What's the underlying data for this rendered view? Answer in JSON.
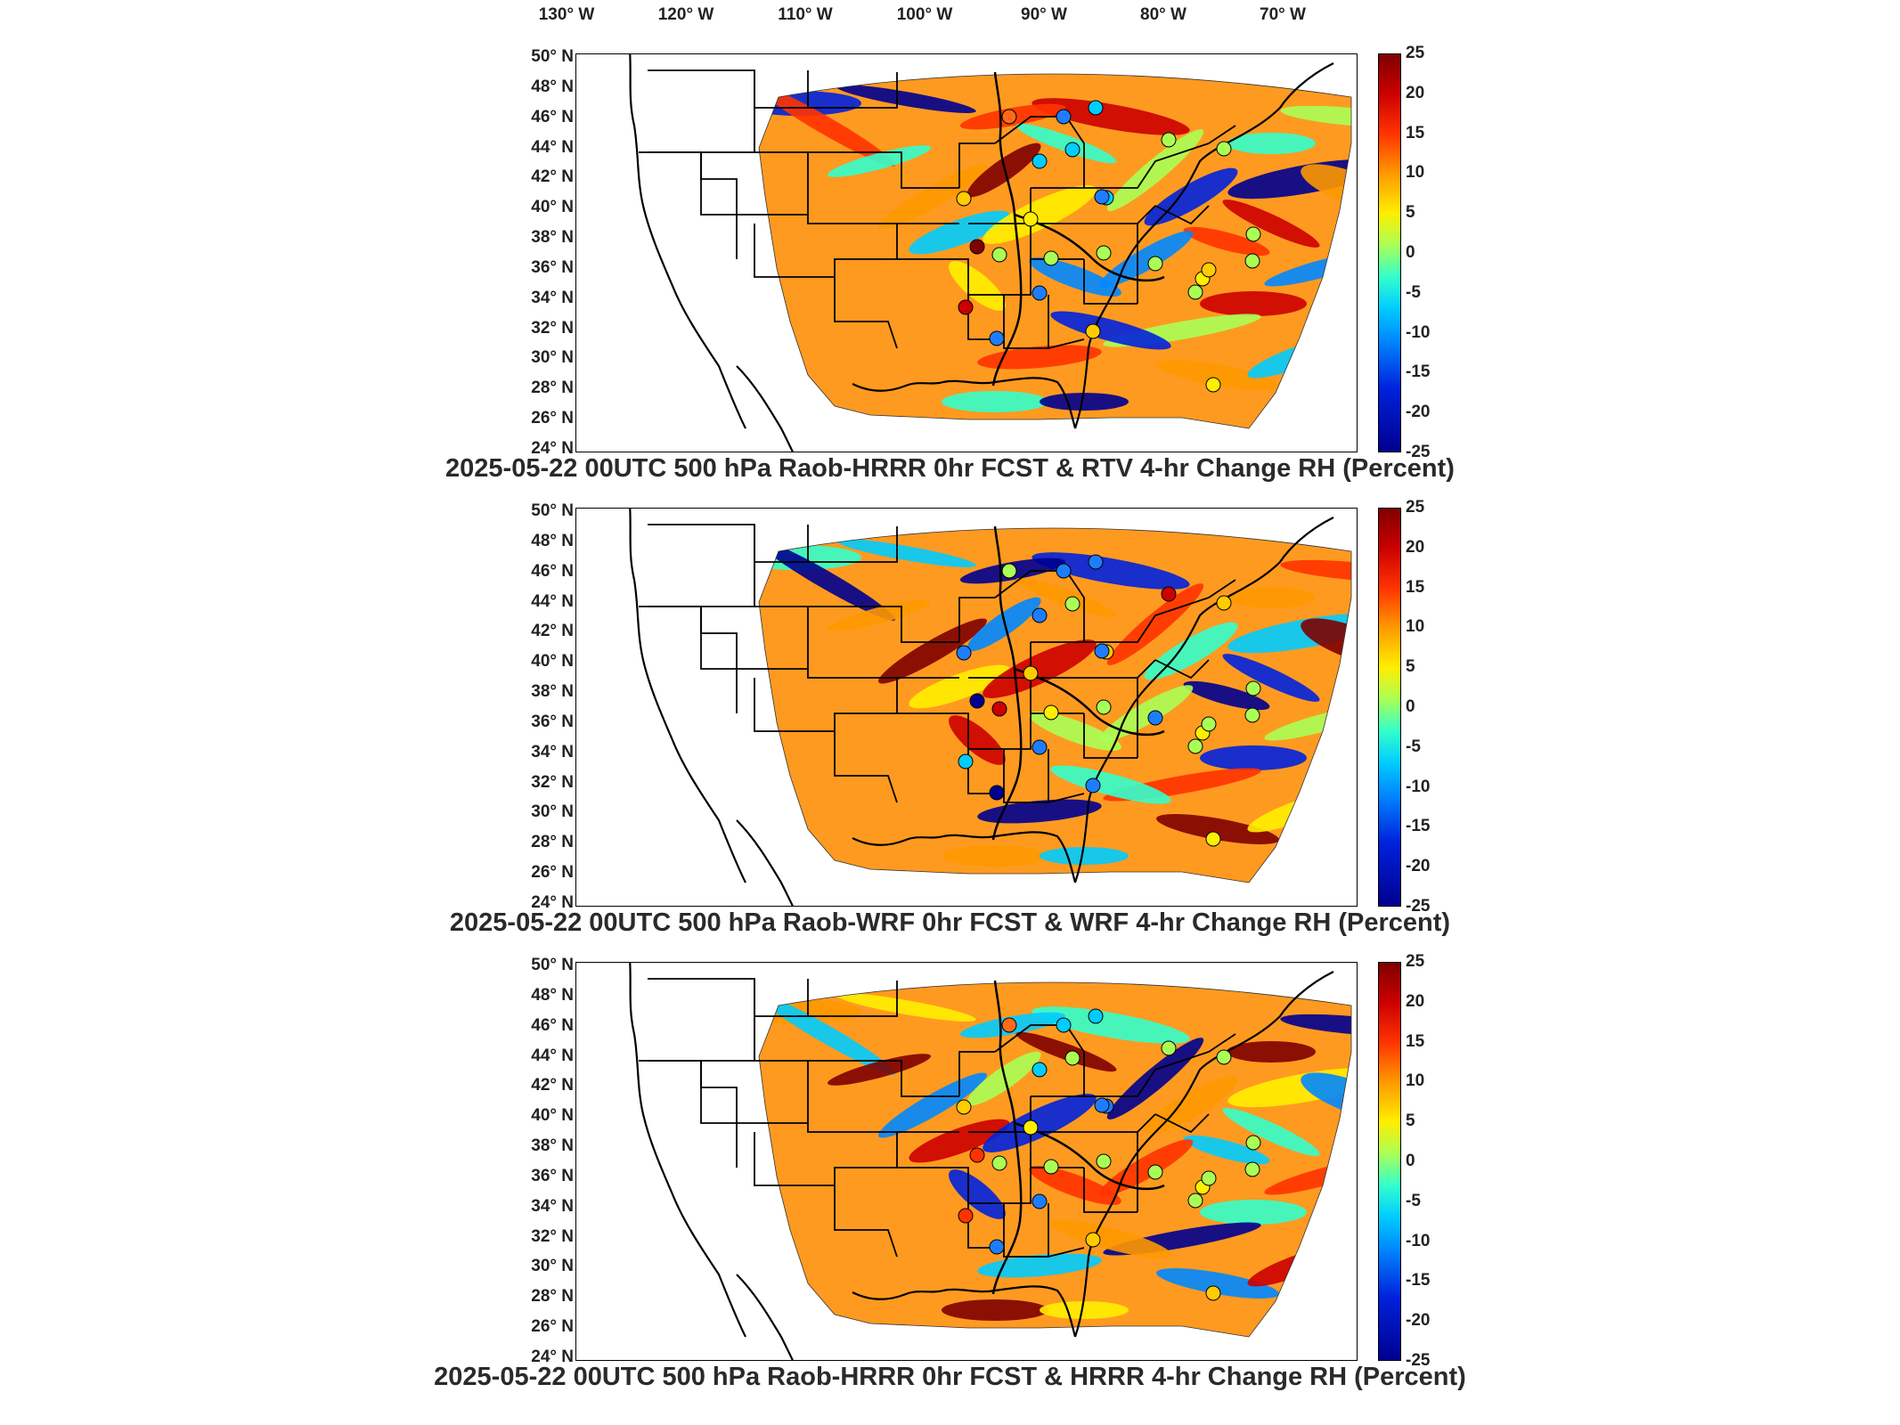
{
  "longitude_labels": [
    "130° W",
    "120° W",
    "110° W",
    "100° W",
    "90° W",
    "80° W",
    "70° W"
  ],
  "latitude_labels": [
    "50° N",
    "48° N",
    "46° N",
    "44° N",
    "42° N",
    "40° N",
    "38° N",
    "36° N",
    "34° N",
    "32° N",
    "30° N",
    "28° N",
    "26° N",
    "24° N"
  ],
  "colorbar": {
    "ticks": [
      "25",
      "20",
      "15",
      "10",
      "5",
      "0",
      "-5",
      "-10",
      "-15",
      "-20",
      "-25"
    ],
    "range": [
      -25,
      25
    ],
    "colors": [
      "#00008f",
      "#0022dd",
      "#0088ff",
      "#00ccff",
      "#33ffcc",
      "#aaff55",
      "#ffee00",
      "#ff9900",
      "#ff3300",
      "#cc0000",
      "#7f0000"
    ]
  },
  "panels": [
    {
      "title": "2025-05-22 00UTC 500 hPa Raob-HRRR 0hr FCST & RTV 4-hr Change RH (Percent)"
    },
    {
      "title": "2025-05-22 00UTC 500 hPa Raob-WRF 0hr FCST & WRF 4-hr Change RH (Percent)"
    },
    {
      "title": "2025-05-22 00UTC 500 hPa Raob-HRRR 0hr FCST & HRRR 4-hr Change RH (Percent)"
    }
  ],
  "station_colors": {
    "p0": [
      "#ff6a1a",
      "#1e7dff",
      "#00ccff",
      "#aaff55",
      "#aaff55",
      "#00ccff",
      "#00ccff",
      "#ffcc00",
      "#ffee00",
      "#00ccff",
      "#aaff55",
      "#aaff55",
      "#1e7dff",
      "#aaff55",
      "#ffee00",
      "#aaff55",
      "#aaff55",
      "#aaff55",
      "#7f0000",
      "#1e7dff",
      "#ffcc00",
      "#cc0000",
      "#1e7dff",
      "#ffee00",
      "#ffcc00",
      "#aaff55"
    ],
    "p1": [
      "#aaff55",
      "#1e7dff",
      "#1e7dff",
      "#cc0000",
      "#ffcc00",
      "#1e7dff",
      "#aaff55",
      "#1e7dff",
      "#ffcc00",
      "#ffcc00",
      "#cc0000",
      "#ffee00",
      "#1e7dff",
      "#aaff55",
      "#ffee00",
      "#1e7dff",
      "#aaff55",
      "#aaff55",
      "#00008f",
      "#1e7dff",
      "#1e7dff",
      "#00ccff",
      "#00008f",
      "#ffee00",
      "#aaff55",
      "#aaff55"
    ],
    "p2": [
      "#ff6a1a",
      "#00ccff",
      "#00ccff",
      "#aaff55",
      "#aaff55",
      "#00ccff",
      "#aaff55",
      "#ffcc00",
      "#ffee00",
      "#1e7dff",
      "#aaff55",
      "#aaff55",
      "#1e7dff",
      "#aaff55",
      "#ffee00",
      "#aaff55",
      "#aaff55",
      "#aaff55",
      "#ff3300",
      "#1e7dff",
      "#ffcc00",
      "#ff3300",
      "#1e7dff",
      "#ffcc00",
      "#aaff55",
      "#aaff55"
    ]
  }
}
